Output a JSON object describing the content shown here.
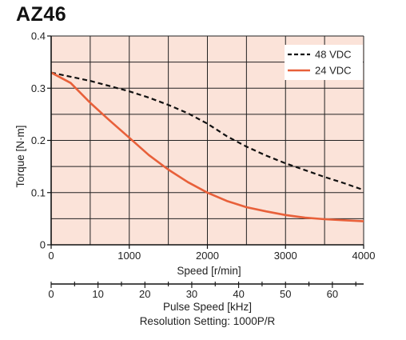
{
  "chart_data": {
    "type": "line",
    "title": "AZ46",
    "xlabel": "Speed [r/min]",
    "ylabel": "Torque [N·m]",
    "x_ticks": [
      "0",
      "1000",
      "2000",
      "3000",
      "4000"
    ],
    "y_ticks": [
      "0",
      "0.1",
      "0.2",
      "0.3",
      "0.4"
    ],
    "xlim": [
      0,
      4000
    ],
    "ylim": [
      0,
      0.4
    ],
    "secondary_x": {
      "label": "Pulse Speed [kHz]",
      "ticks": [
        "0",
        "10",
        "20",
        "30",
        "40",
        "50",
        "60"
      ],
      "tick_values": [
        0,
        10,
        20,
        30,
        40,
        50,
        60
      ],
      "range": [
        0,
        66.67
      ],
      "note": "Resolution Setting: 1000P/R"
    },
    "grid": true,
    "legend_position": "top-right",
    "background_color": "#fbe3d9",
    "series": [
      {
        "name": "48 VDC",
        "style": "dashed",
        "color": "#111111",
        "x": [
          0,
          250,
          500,
          750,
          1000,
          1250,
          1500,
          1750,
          2000,
          2250,
          2500,
          2750,
          3000,
          3250,
          3500,
          3750,
          4000
        ],
        "y": [
          0.33,
          0.322,
          0.314,
          0.304,
          0.294,
          0.282,
          0.268,
          0.252,
          0.232,
          0.208,
          0.188,
          0.171,
          0.156,
          0.143,
          0.13,
          0.118,
          0.105
        ]
      },
      {
        "name": "24 VDC",
        "style": "solid",
        "color": "#e8603a",
        "x": [
          0,
          250,
          500,
          750,
          1000,
          1250,
          1500,
          1750,
          2000,
          2250,
          2500,
          2750,
          3000,
          3250,
          3500,
          3750,
          4000
        ],
        "y": [
          0.33,
          0.31,
          0.272,
          0.238,
          0.205,
          0.172,
          0.144,
          0.12,
          0.1,
          0.084,
          0.072,
          0.064,
          0.057,
          0.052,
          0.049,
          0.047,
          0.045
        ]
      }
    ]
  }
}
